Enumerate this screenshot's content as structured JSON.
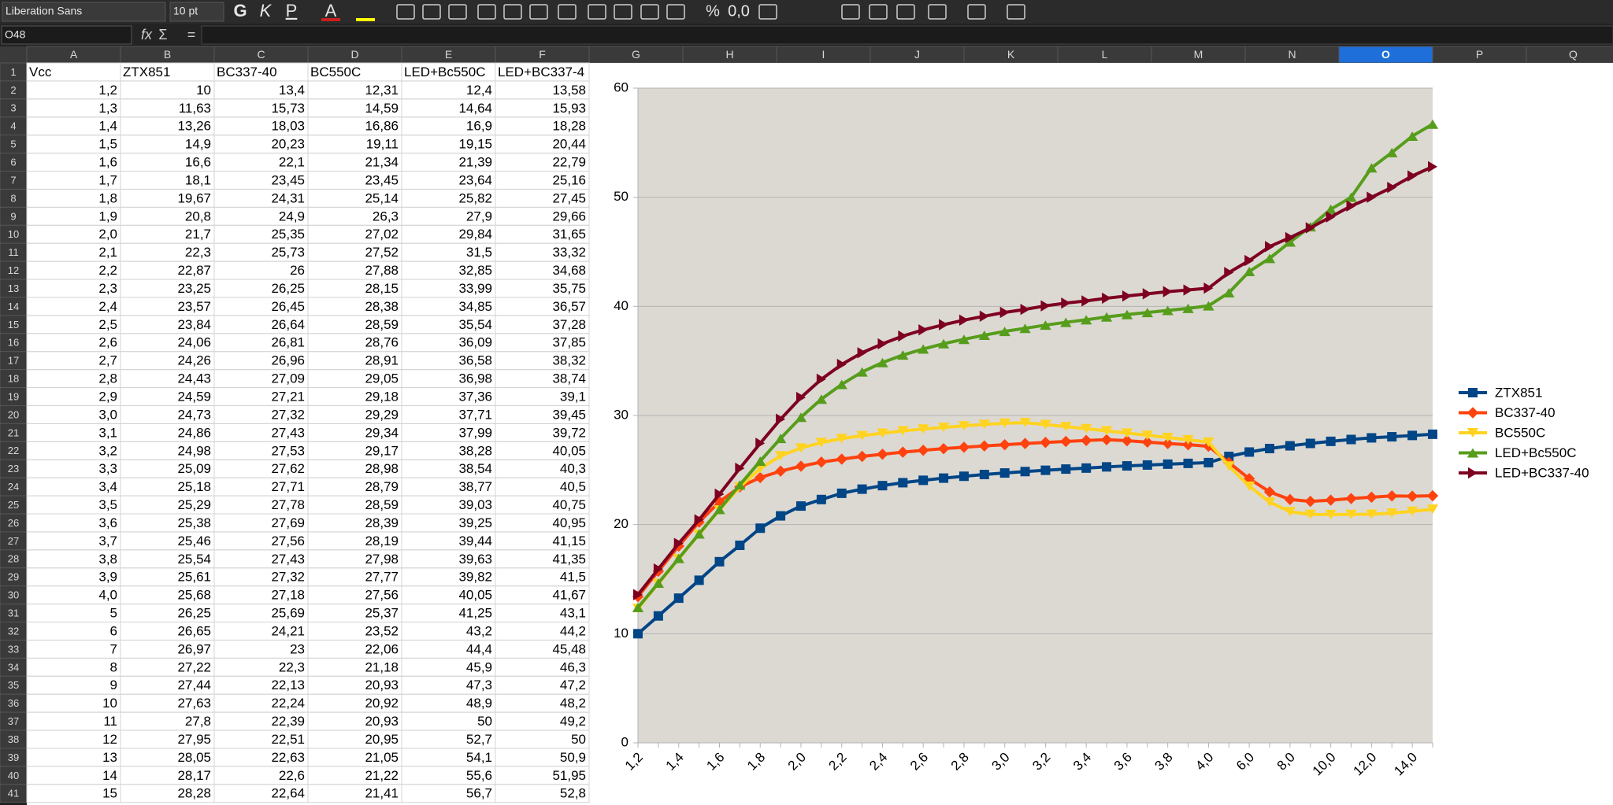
{
  "toolbar": {
    "font_name": "Liberation Sans",
    "font_size": "10 pt",
    "buttons": [
      "G",
      "K",
      "P",
      "A",
      "%",
      "0,0"
    ]
  },
  "formula_bar": {
    "name_box": "O48",
    "icons": [
      "fx",
      "Σ",
      "="
    ]
  },
  "column_headers": [
    "A",
    "B",
    "C",
    "D",
    "E",
    "F",
    "G",
    "H",
    "I",
    "J",
    "K",
    "L",
    "M",
    "N",
    "O",
    "P",
    "Q"
  ],
  "selected_column": "O",
  "row_headers": [
    "1",
    "2",
    "3",
    "4",
    "5",
    "6",
    "7",
    "8",
    "9",
    "10",
    "11",
    "12",
    "13",
    "14",
    "15",
    "16",
    "17",
    "18",
    "19",
    "20",
    "21",
    "22",
    "23",
    "24",
    "25",
    "26",
    "27",
    "28",
    "29",
    "30",
    "31",
    "32",
    "33",
    "34",
    "35",
    "36",
    "37",
    "38",
    "39",
    "40",
    "41"
  ],
  "sheet": {
    "header": [
      "Vcc",
      "ZTX851",
      "BC337-40",
      "BC550C",
      "LED+Bc550C",
      "LED+BC337-4"
    ],
    "rows": [
      [
        "1,2",
        "10",
        "13,4",
        "12,31",
        "12,4",
        "13,58"
      ],
      [
        "1,3",
        "11,63",
        "15,73",
        "14,59",
        "14,64",
        "15,93"
      ],
      [
        "1,4",
        "13,26",
        "18,03",
        "16,86",
        "16,9",
        "18,28"
      ],
      [
        "1,5",
        "14,9",
        "20,23",
        "19,11",
        "19,15",
        "20,44"
      ],
      [
        "1,6",
        "16,6",
        "22,1",
        "21,34",
        "21,39",
        "22,79"
      ],
      [
        "1,7",
        "18,1",
        "23,45",
        "23,45",
        "23,64",
        "25,16"
      ],
      [
        "1,8",
        "19,67",
        "24,31",
        "25,14",
        "25,82",
        "27,45"
      ],
      [
        "1,9",
        "20,8",
        "24,9",
        "26,3",
        "27,9",
        "29,66"
      ],
      [
        "2,0",
        "21,7",
        "25,35",
        "27,02",
        "29,84",
        "31,65"
      ],
      [
        "2,1",
        "22,3",
        "25,73",
        "27,52",
        "31,5",
        "33,32"
      ],
      [
        "2,2",
        "22,87",
        "26",
        "27,88",
        "32,85",
        "34,68"
      ],
      [
        "2,3",
        "23,25",
        "26,25",
        "28,15",
        "33,99",
        "35,75"
      ],
      [
        "2,4",
        "23,57",
        "26,45",
        "28,38",
        "34,85",
        "36,57"
      ],
      [
        "2,5",
        "23,84",
        "26,64",
        "28,59",
        "35,54",
        "37,28"
      ],
      [
        "2,6",
        "24,06",
        "26,81",
        "28,76",
        "36,09",
        "37,85"
      ],
      [
        "2,7",
        "24,26",
        "26,96",
        "28,91",
        "36,58",
        "38,32"
      ],
      [
        "2,8",
        "24,43",
        "27,09",
        "29,05",
        "36,98",
        "38,74"
      ],
      [
        "2,9",
        "24,59",
        "27,21",
        "29,18",
        "37,36",
        "39,1"
      ],
      [
        "3,0",
        "24,73",
        "27,32",
        "29,29",
        "37,71",
        "39,45"
      ],
      [
        "3,1",
        "24,86",
        "27,43",
        "29,34",
        "37,99",
        "39,72"
      ],
      [
        "3,2",
        "24,98",
        "27,53",
        "29,17",
        "38,28",
        "40,05"
      ],
      [
        "3,3",
        "25,09",
        "27,62",
        "28,98",
        "38,54",
        "40,3"
      ],
      [
        "3,4",
        "25,18",
        "27,71",
        "28,79",
        "38,77",
        "40,5"
      ],
      [
        "3,5",
        "25,29",
        "27,78",
        "28,59",
        "39,03",
        "40,75"
      ],
      [
        "3,6",
        "25,38",
        "27,69",
        "28,39",
        "39,25",
        "40,95"
      ],
      [
        "3,7",
        "25,46",
        "27,56",
        "28,19",
        "39,44",
        "41,15"
      ],
      [
        "3,8",
        "25,54",
        "27,43",
        "27,98",
        "39,63",
        "41,35"
      ],
      [
        "3,9",
        "25,61",
        "27,32",
        "27,77",
        "39,82",
        "41,5"
      ],
      [
        "4,0",
        "25,68",
        "27,18",
        "27,56",
        "40,05",
        "41,67"
      ],
      [
        "5",
        "26,25",
        "25,69",
        "25,37",
        "41,25",
        "43,1"
      ],
      [
        "6",
        "26,65",
        "24,21",
        "23,52",
        "43,2",
        "44,2"
      ],
      [
        "7",
        "26,97",
        "23",
        "22,06",
        "44,4",
        "45,48"
      ],
      [
        "8",
        "27,22",
        "22,3",
        "21,18",
        "45,9",
        "46,3"
      ],
      [
        "9",
        "27,44",
        "22,13",
        "20,93",
        "47,3",
        "47,2"
      ],
      [
        "10",
        "27,63",
        "22,24",
        "20,92",
        "48,9",
        "48,2"
      ],
      [
        "11",
        "27,8",
        "22,39",
        "20,93",
        "50",
        "49,2"
      ],
      [
        "12",
        "27,95",
        "22,51",
        "20,95",
        "52,7",
        "50"
      ],
      [
        "13",
        "28,05",
        "22,63",
        "21,05",
        "54,1",
        "50,9"
      ],
      [
        "14",
        "28,17",
        "22,6",
        "21,22",
        "55,6",
        "51,95"
      ],
      [
        "15",
        "28,28",
        "22,64",
        "21,41",
        "56,7",
        "52,8"
      ]
    ]
  },
  "chart_data": {
    "type": "line",
    "categories": [
      "1,2",
      null,
      "1,4",
      null,
      "1,6",
      null,
      "1,8",
      null,
      "2,0",
      null,
      "2,2",
      null,
      "2,4",
      null,
      "2,6",
      null,
      "2,8",
      null,
      "3,0",
      null,
      "3,2",
      null,
      "3,4",
      null,
      "3,6",
      null,
      "3,8",
      null,
      "4,0",
      null,
      "6,0",
      null,
      "8,0",
      null,
      "10,0",
      null,
      "12,0",
      null,
      "14,0",
      null
    ],
    "ylim": [
      0,
      60
    ],
    "yticks": [
      0,
      10,
      20,
      30,
      40,
      50,
      60
    ],
    "grid": true,
    "legend": "right",
    "series": [
      {
        "name": "ZTX851",
        "color": "#004586",
        "marker": "square",
        "values": [
          10,
          11.63,
          13.26,
          14.9,
          16.6,
          18.1,
          19.67,
          20.8,
          21.7,
          22.3,
          22.87,
          23.25,
          23.57,
          23.84,
          24.06,
          24.26,
          24.43,
          24.59,
          24.73,
          24.86,
          24.98,
          25.09,
          25.18,
          25.29,
          25.38,
          25.46,
          25.54,
          25.61,
          25.68,
          26.25,
          26.65,
          26.97,
          27.22,
          27.44,
          27.63,
          27.8,
          27.95,
          28.05,
          28.17,
          28.28
        ]
      },
      {
        "name": "BC337-40",
        "color": "#ff420e",
        "marker": "diamond",
        "values": [
          13.4,
          15.73,
          18.03,
          20.23,
          22.1,
          23.45,
          24.31,
          24.9,
          25.35,
          25.73,
          26,
          26.25,
          26.45,
          26.64,
          26.81,
          26.96,
          27.09,
          27.21,
          27.32,
          27.43,
          27.53,
          27.62,
          27.71,
          27.78,
          27.69,
          27.56,
          27.43,
          27.32,
          27.18,
          25.69,
          24.21,
          23,
          22.3,
          22.13,
          22.24,
          22.39,
          22.51,
          22.63,
          22.6,
          22.64
        ]
      },
      {
        "name": "BC550C",
        "color": "#ffd320",
        "marker": "triangle-down",
        "values": [
          12.31,
          14.59,
          16.86,
          19.11,
          21.34,
          23.45,
          25.14,
          26.3,
          27.02,
          27.52,
          27.88,
          28.15,
          28.38,
          28.59,
          28.76,
          28.91,
          29.05,
          29.18,
          29.29,
          29.34,
          29.17,
          28.98,
          28.79,
          28.59,
          28.39,
          28.19,
          27.98,
          27.77,
          27.56,
          25.37,
          23.52,
          22.06,
          21.18,
          20.93,
          20.92,
          20.93,
          20.95,
          21.05,
          21.22,
          21.41
        ]
      },
      {
        "name": "LED+Bc550C",
        "color": "#579d1c",
        "marker": "triangle-up",
        "values": [
          12.4,
          14.64,
          16.9,
          19.15,
          21.39,
          23.64,
          25.82,
          27.9,
          29.84,
          31.5,
          32.85,
          33.99,
          34.85,
          35.54,
          36.09,
          36.58,
          36.98,
          37.36,
          37.71,
          37.99,
          38.28,
          38.54,
          38.77,
          39.03,
          39.25,
          39.44,
          39.63,
          39.82,
          40.05,
          41.25,
          43.2,
          44.4,
          45.9,
          47.3,
          48.9,
          50,
          52.7,
          54.1,
          55.6,
          56.7
        ]
      },
      {
        "name": "LED+BC337-40",
        "color": "#7e0021",
        "marker": "triangle-right",
        "values": [
          13.58,
          15.93,
          18.28,
          20.44,
          22.79,
          25.16,
          27.45,
          29.66,
          31.65,
          33.32,
          34.68,
          35.75,
          36.57,
          37.28,
          37.85,
          38.32,
          38.74,
          39.1,
          39.45,
          39.72,
          40.05,
          40.3,
          40.5,
          40.75,
          40.95,
          41.15,
          41.35,
          41.5,
          41.67,
          43.1,
          44.2,
          45.48,
          46.3,
          47.2,
          48.2,
          49.2,
          50,
          50.9,
          51.95,
          52.8
        ]
      }
    ]
  }
}
